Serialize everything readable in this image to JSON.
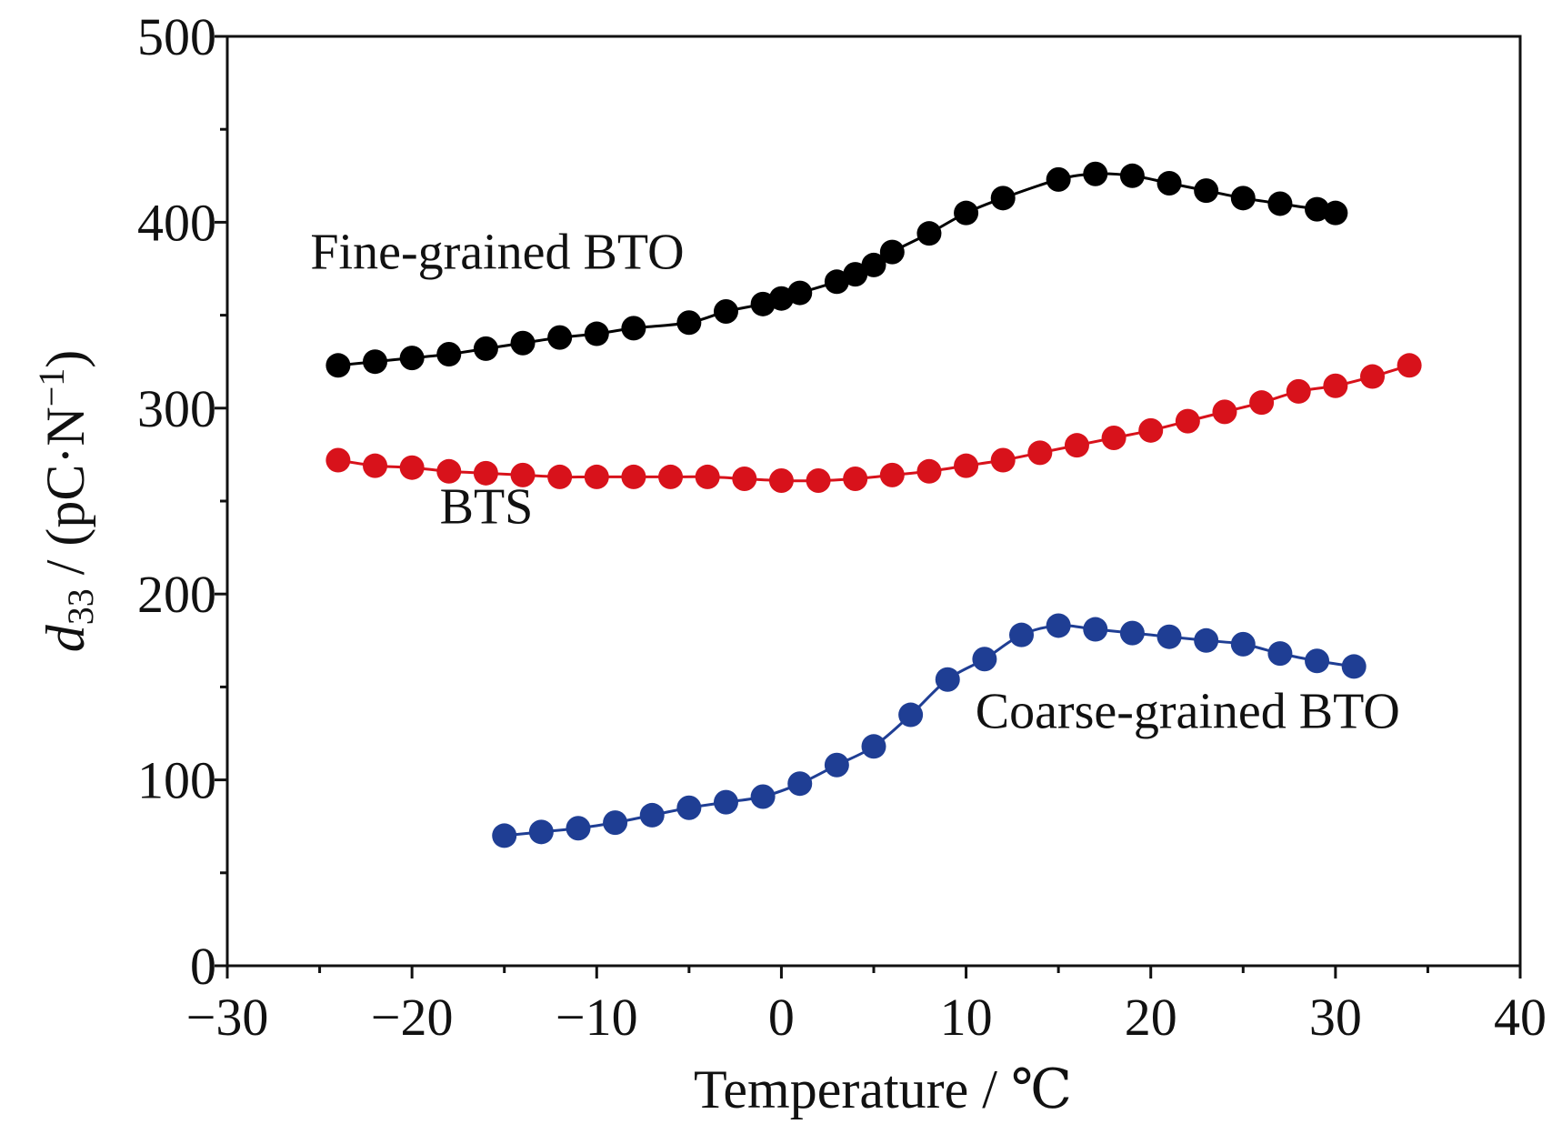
{
  "chart_data": {
    "type": "line",
    "title": "",
    "xlabel": "Temperature / ℃",
    "ylabel": {
      "symbol": "d",
      "subscript": "33",
      "unit": " / (pC·N",
      "superscript": "−1",
      "close": ")"
    },
    "xlim": [
      -30,
      40
    ],
    "ylim": [
      0,
      500
    ],
    "x_ticks": [
      -30,
      -20,
      -10,
      0,
      10,
      20,
      30,
      40
    ],
    "x_tick_labels": [
      "−30",
      "−20",
      "−10",
      "0",
      "10",
      "20",
      "30",
      "40"
    ],
    "y_ticks": [
      0,
      100,
      200,
      300,
      400,
      500
    ],
    "y_tick_labels": [
      "0",
      "100",
      "200",
      "300",
      "400",
      "500"
    ],
    "x_minor_step": 5,
    "y_minor_step": 50,
    "grid": false,
    "legend": "none",
    "series": [
      {
        "name": "Fine-grained BTO",
        "color": "#000000",
        "label_anchor": {
          "x": -25.5,
          "y": 375
        },
        "x": [
          -24,
          -22,
          -20,
          -18,
          -16,
          -14,
          -12,
          -10,
          -8,
          -5,
          -3,
          -1,
          0,
          1,
          3,
          4,
          5,
          6,
          8,
          10,
          12,
          15,
          17,
          19,
          21,
          23,
          25,
          27,
          29,
          30
        ],
        "y": [
          323,
          325,
          327,
          329,
          332,
          335,
          338,
          340,
          343,
          346,
          352,
          356,
          359,
          362,
          368,
          372,
          377,
          384,
          394,
          405,
          413,
          423,
          426,
          425,
          421,
          417,
          413,
          410,
          407,
          405
        ]
      },
      {
        "name": "BTS",
        "color": "#d8121b",
        "label_anchor": {
          "x": -18.5,
          "y": 238
        },
        "x": [
          -24,
          -22,
          -20,
          -18,
          -16,
          -14,
          -12,
          -10,
          -8,
          -6,
          -4,
          -2,
          0,
          2,
          4,
          6,
          8,
          10,
          12,
          14,
          16,
          18,
          20,
          22,
          24,
          26,
          28,
          30,
          32,
          34
        ],
        "y": [
          272,
          269,
          268,
          266,
          265,
          264,
          263,
          263,
          263,
          263,
          263,
          262,
          261,
          261,
          262,
          264,
          266,
          269,
          272,
          276,
          280,
          284,
          288,
          293,
          298,
          303,
          309,
          312,
          317,
          323
        ]
      },
      {
        "name": "Coarse-grained BTO",
        "color": "#1f3e94",
        "label_anchor": {
          "x": 10.5,
          "y": 128
        },
        "x": [
          -15,
          -13,
          -11,
          -9,
          -7,
          -5,
          -3,
          -1,
          1,
          3,
          5,
          7,
          9,
          11,
          13,
          15,
          17,
          19,
          21,
          23,
          25,
          27,
          29,
          31
        ],
        "y": [
          70,
          72,
          74,
          77,
          81,
          85,
          88,
          91,
          98,
          108,
          118,
          135,
          154,
          165,
          178,
          183,
          181,
          179,
          177,
          175,
          173,
          168,
          164,
          161
        ]
      }
    ]
  }
}
